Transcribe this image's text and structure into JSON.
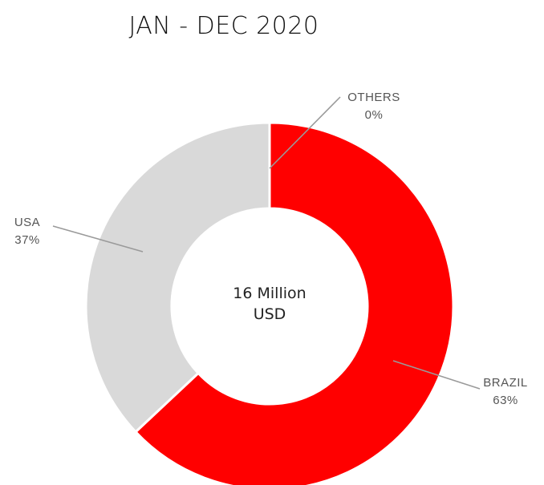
{
  "chart_data": {
    "type": "pie",
    "variant": "donut",
    "title": "JAN - DEC 2020",
    "center_text": [
      "16 Million",
      "USD"
    ],
    "slices": [
      {
        "label": "BRAZIL",
        "value": 63,
        "value_label": "63%",
        "color": "#ff0000"
      },
      {
        "label": "USA",
        "value": 37,
        "value_label": "37%",
        "color": "#d9d9d9"
      },
      {
        "label": "OTHERS",
        "value": 0,
        "value_label": "0%",
        "color": "#d9d9d9"
      }
    ],
    "legend": "none"
  }
}
